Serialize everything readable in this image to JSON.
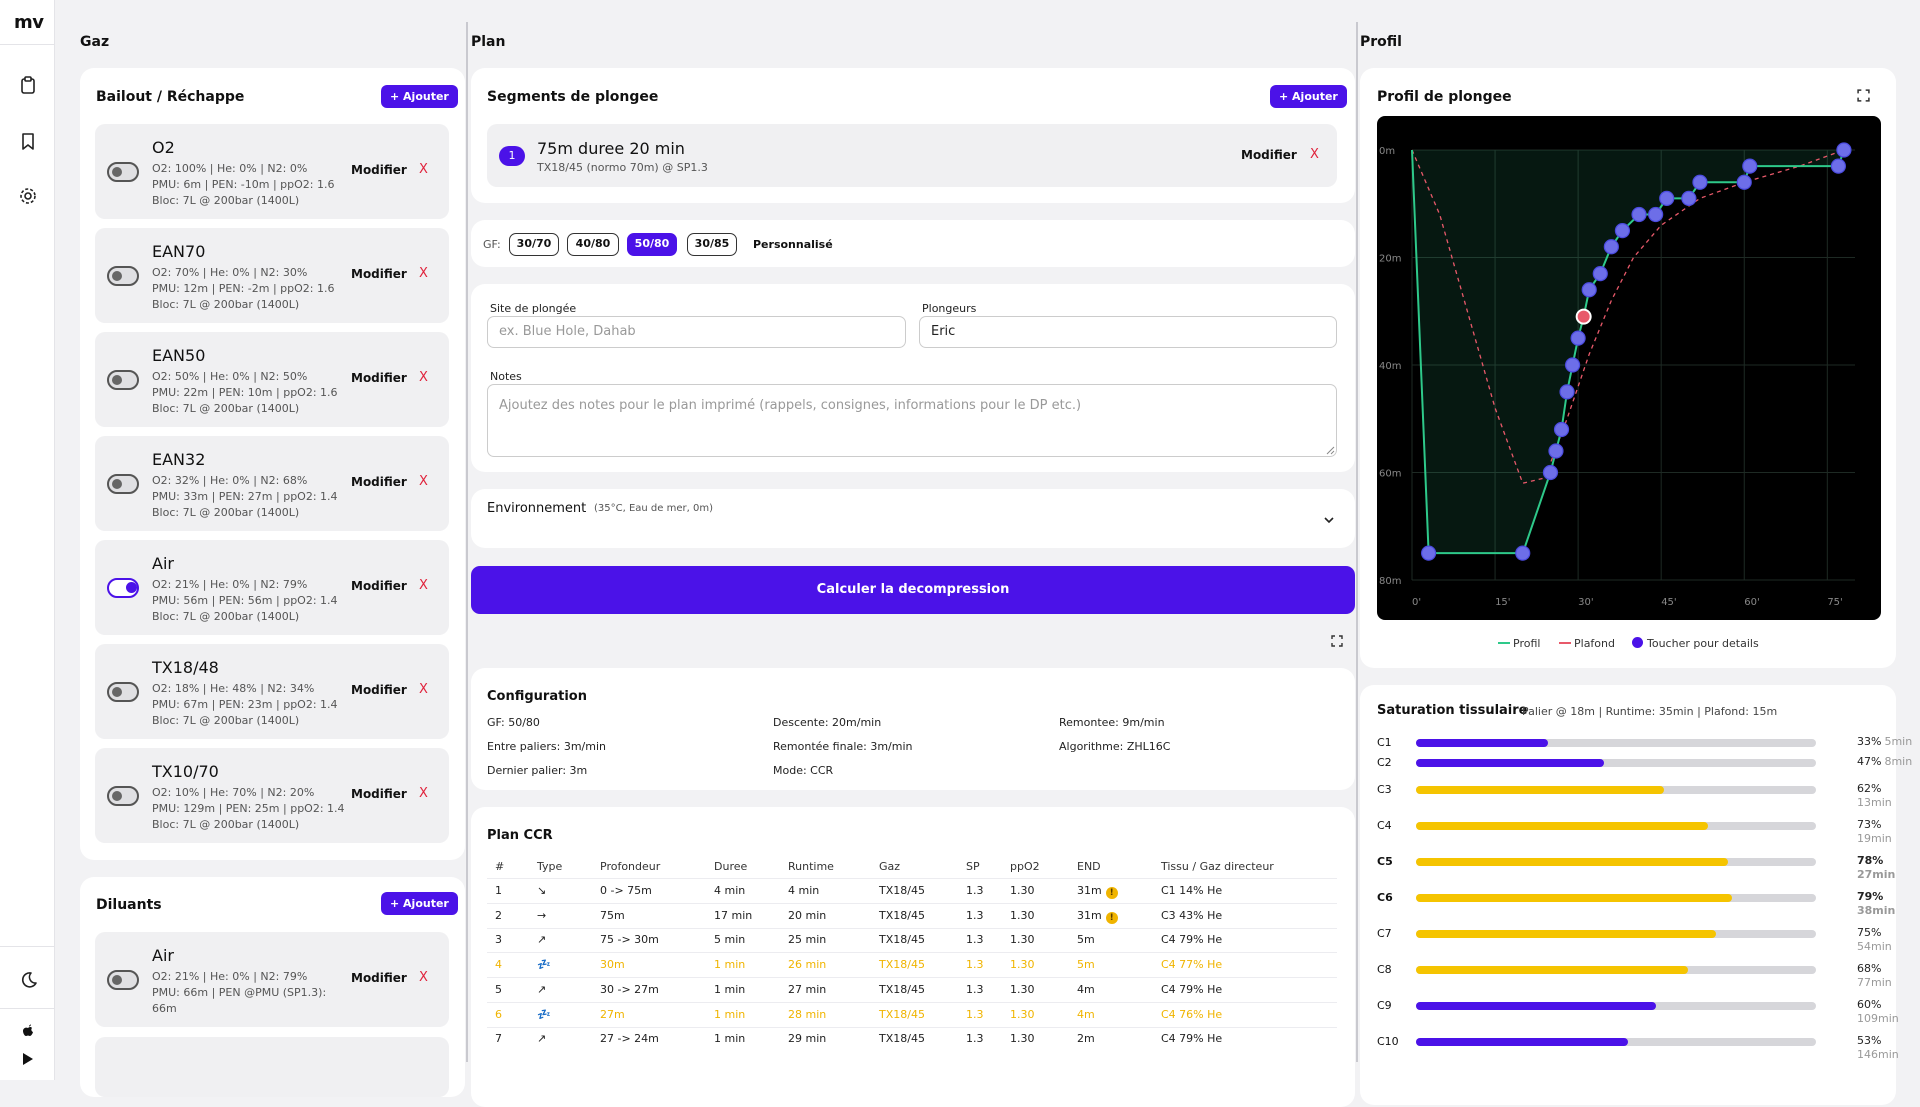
{
  "app": {
    "logo": "mv"
  },
  "columns": {
    "gaz": "Gaz",
    "plan": "Plan",
    "profil": "Profil"
  },
  "bailout": {
    "title": "Bailout / Réchappe",
    "add_label": "+ Ajouter",
    "modify_label": "Modifier",
    "delete_label": "X",
    "items": [
      {
        "name": "O2",
        "line1": "O2: 100% | He: 0% | N2: 0%",
        "line2": "PMU: 6m | PEN: -10m | ppO2: 1.6",
        "line3": "Bloc: 7L @ 200bar (1400L)",
        "enabled": false
      },
      {
        "name": "EAN70",
        "line1": "O2: 70% | He: 0% | N2: 30%",
        "line2": "PMU: 12m | PEN: -2m | ppO2: 1.6",
        "line3": "Bloc: 7L @ 200bar (1400L)",
        "enabled": false
      },
      {
        "name": "EAN50",
        "line1": "O2: 50% | He: 0% | N2: 50%",
        "line2": "PMU: 22m | PEN: 10m | ppO2: 1.6",
        "line3": "Bloc: 7L @ 200bar (1400L)",
        "enabled": false
      },
      {
        "name": "EAN32",
        "line1": "O2: 32% | He: 0% | N2: 68%",
        "line2": "PMU: 33m | PEN: 27m | ppO2: 1.4",
        "line3": "Bloc: 7L @ 200bar (1400L)",
        "enabled": false
      },
      {
        "name": "Air",
        "line1": "O2: 21% | He: 0% | N2: 79%",
        "line2": "PMU: 56m | PEN: 56m | ppO2: 1.4",
        "line3": "Bloc: 7L @ 200bar (1400L)",
        "enabled": true
      },
      {
        "name": "TX18/48",
        "line1": "O2: 18% | He: 48% | N2: 34%",
        "line2": "PMU: 67m | PEN: 23m | ppO2: 1.4",
        "line3": "Bloc: 7L @ 200bar (1400L)",
        "enabled": false
      },
      {
        "name": "TX10/70",
        "line1": "O2: 10% | He: 70% | N2: 20%",
        "line2": "PMU: 129m | PEN: 25m | ppO2: 1.4",
        "line3": "Bloc: 7L @ 200bar (1400L)",
        "enabled": false
      }
    ]
  },
  "diluants": {
    "title": "Diluants",
    "add_label": "+ Ajouter",
    "items": [
      {
        "name": "Air",
        "line1": "O2: 21% | He: 0% | N2: 79%",
        "line2": "PMU: 66m | PEN @PMU (SP1.3):",
        "line3": "66m",
        "enabled": false
      }
    ]
  },
  "segments": {
    "title": "Segments de plongee",
    "add_label": "+ Ajouter",
    "items": [
      {
        "index": "1",
        "title": "75m duree 20 min",
        "subtitle": "TX18/45 (normo 70m) @ SP1.3"
      }
    ],
    "modify_label": "Modifier",
    "delete_label": "X"
  },
  "gf": {
    "label": "GF:",
    "options": [
      "30/70",
      "40/80",
      "50/80",
      "30/85"
    ],
    "selected": "50/80",
    "custom_label": "Personnalisé"
  },
  "form": {
    "site_label": "Site de plongée",
    "site_placeholder": "ex. Blue Hole, Dahab",
    "divers_label": "Plongeurs",
    "divers_value": "Eric",
    "notes_label": "Notes",
    "notes_placeholder": "Ajoutez des notes pour le plan imprimé (rappels, consignes, informations pour le DP etc.)"
  },
  "environment": {
    "label": "Environnement",
    "summary": "(35°C, Eau de mer, 0m)"
  },
  "calculate_label": "Calculer la decompression",
  "configuration": {
    "title": "Configuration",
    "items": [
      [
        "GF: 50/80",
        "Descente: 20m/min",
        "Remontee: 9m/min"
      ],
      [
        "Entre paliers: 3m/min",
        "Remontée finale: 3m/min",
        "Algorithme: ZHL16C"
      ],
      [
        "Dernier palier: 3m",
        "Mode: CCR",
        ""
      ]
    ]
  },
  "plan_ccr": {
    "title": "Plan CCR",
    "headers": [
      "#",
      "Type",
      "Profondeur",
      "Duree",
      "Runtime",
      "Gaz",
      "SP",
      "ppO2",
      "END",
      "Tissu / Gaz directeur"
    ],
    "rows": [
      {
        "n": "1",
        "type": "↘",
        "depth": "0 -> 75m",
        "dur": "4 min",
        "run": "4 min",
        "gas": "TX18/45",
        "sp": "1.3",
        "ppo2": "1.30",
        "end": "31m",
        "end_warn": "!",
        "tissue": "C1 14% He",
        "stop": false
      },
      {
        "n": "2",
        "type": "→",
        "depth": "75m",
        "dur": "17 min",
        "run": "20 min",
        "gas": "TX18/45",
        "sp": "1.3",
        "ppo2": "1.30",
        "end": "31m",
        "end_warn": "!",
        "tissue": "C3 43% He",
        "stop": false
      },
      {
        "n": "3",
        "type": "↗",
        "depth": "75 -> 30m",
        "dur": "5 min",
        "run": "25 min",
        "gas": "TX18/45",
        "sp": "1.3",
        "ppo2": "1.30",
        "end": "5m",
        "end_warn": "",
        "tissue": "C4 79% He",
        "stop": false
      },
      {
        "n": "4",
        "type": "💤",
        "depth": "30m",
        "dur": "1 min",
        "run": "26 min",
        "gas": "TX18/45",
        "sp": "1.3",
        "ppo2": "1.30",
        "end": "5m",
        "end_warn": "",
        "tissue": "C4 77% He",
        "stop": true
      },
      {
        "n": "5",
        "type": "↗",
        "depth": "30 -> 27m",
        "dur": "1 min",
        "run": "27 min",
        "gas": "TX18/45",
        "sp": "1.3",
        "ppo2": "1.30",
        "end": "4m",
        "end_warn": "",
        "tissue": "C4 79% He",
        "stop": false
      },
      {
        "n": "6",
        "type": "💤",
        "depth": "27m",
        "dur": "1 min",
        "run": "28 min",
        "gas": "TX18/45",
        "sp": "1.3",
        "ppo2": "1.30",
        "end": "4m",
        "end_warn": "",
        "tissue": "C4 76% He",
        "stop": true
      },
      {
        "n": "7",
        "type": "↗",
        "depth": "27 -> 24m",
        "dur": "1 min",
        "run": "29 min",
        "gas": "TX18/45",
        "sp": "1.3",
        "ppo2": "1.30",
        "end": "2m",
        "end_warn": "",
        "tissue": "C4 79% He",
        "stop": false
      }
    ]
  },
  "profile": {
    "title": "Profil de plongee",
    "y_ticks": [
      "0m",
      "20m",
      "40m",
      "60m",
      "80m"
    ],
    "x_ticks": [
      "0'",
      "15'",
      "30'",
      "45'",
      "60'",
      "75'"
    ],
    "legend": {
      "profil": "Profil",
      "plafond": "Plafond",
      "details": "Toucher pour details"
    },
    "colors": {
      "profil": "#2ec98a",
      "plafond": "#e8596a",
      "point": "#6d6ee8",
      "highlight": "#e8596a"
    }
  },
  "saturation": {
    "title": "Saturation tissulaire",
    "subtitle": "Palier @ 18m | Runtime: 35min | Plafond: 15m",
    "items": [
      {
        "label": "C1",
        "pct": "33%",
        "time": "5min",
        "value": 33,
        "color": "#4b12e8",
        "bold": false
      },
      {
        "label": "C2",
        "pct": "47%",
        "time": "8min",
        "value": 47,
        "color": "#4b12e8",
        "bold": false
      },
      {
        "label": "C3",
        "pct": "62%",
        "time": "13min",
        "value": 62,
        "color": "#f5c400",
        "bold": false
      },
      {
        "label": "C4",
        "pct": "73%",
        "time": "19min",
        "value": 73,
        "color": "#f5c400",
        "bold": false
      },
      {
        "label": "C5",
        "pct": "78%",
        "time": "27min",
        "value": 78,
        "color": "#f5c400",
        "bold": true
      },
      {
        "label": "C6",
        "pct": "79%",
        "time": "38min",
        "value": 79,
        "color": "#f5c400",
        "bold": true
      },
      {
        "label": "C7",
        "pct": "75%",
        "time": "54min",
        "value": 75,
        "color": "#f5c400",
        "bold": false
      },
      {
        "label": "C8",
        "pct": "68%",
        "time": "77min",
        "value": 68,
        "color": "#f5c400",
        "bold": false
      },
      {
        "label": "C9",
        "pct": "60%",
        "time": "109min",
        "value": 60,
        "color": "#4b12e8",
        "bold": false
      },
      {
        "label": "C10",
        "pct": "53%",
        "time": "146min",
        "value": 53,
        "color": "#4b12e8",
        "bold": false
      }
    ]
  },
  "chart_data": {
    "type": "line",
    "title": "Profil de plongee",
    "xlabel": "",
    "ylabel": "",
    "x_ticks": [
      "0'",
      "15'",
      "30'",
      "45'",
      "60'",
      "75'"
    ],
    "y_ticks": [
      "0m",
      "20m",
      "40m",
      "60m",
      "80m"
    ],
    "xlim": [
      0,
      80
    ],
    "ylim": [
      0,
      80
    ],
    "grid": true,
    "legend_position": "bottom",
    "series": [
      {
        "name": "Profil",
        "color": "#2ec98a",
        "style": "solid",
        "points": [
          [
            0,
            0
          ],
          [
            3,
            75
          ],
          [
            20,
            75
          ],
          [
            25,
            60
          ],
          [
            26,
            56
          ],
          [
            27,
            52
          ],
          [
            28,
            45
          ],
          [
            29,
            40
          ],
          [
            30,
            35
          ],
          [
            31,
            31
          ],
          [
            32,
            26
          ],
          [
            34,
            23
          ],
          [
            36,
            18
          ],
          [
            38,
            15
          ],
          [
            41,
            12
          ],
          [
            44,
            12
          ],
          [
            46,
            9
          ],
          [
            50,
            9
          ],
          [
            52,
            6
          ],
          [
            60,
            6
          ],
          [
            61,
            3
          ],
          [
            77,
            3
          ],
          [
            78,
            0
          ]
        ]
      },
      {
        "name": "Plafond",
        "color": "#e8596a",
        "style": "dashed",
        "points": [
          [
            0,
            0
          ],
          [
            5,
            12
          ],
          [
            10,
            30
          ],
          [
            15,
            48
          ],
          [
            20,
            62
          ],
          [
            24,
            61
          ],
          [
            28,
            50
          ],
          [
            32,
            38
          ],
          [
            36,
            28
          ],
          [
            40,
            20
          ],
          [
            45,
            14
          ],
          [
            52,
            9
          ],
          [
            60,
            6
          ],
          [
            70,
            3
          ],
          [
            78,
            0
          ]
        ]
      }
    ]
  }
}
